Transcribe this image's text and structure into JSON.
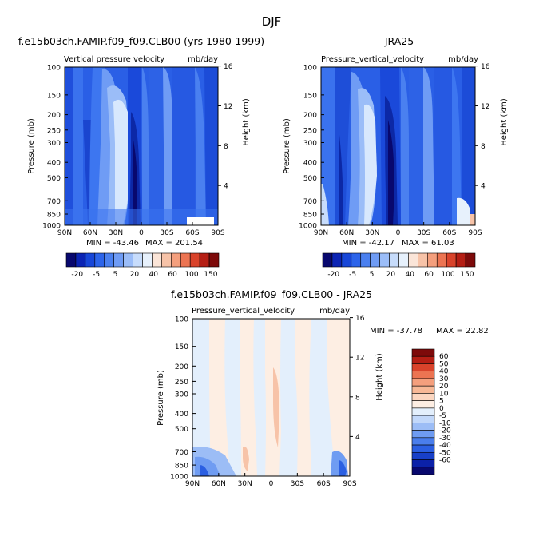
{
  "page": {
    "title": "DJF"
  },
  "chart_data": [
    {
      "type": "heatmap",
      "id": "model",
      "title": "f.e15b03ch.FAMIP.f09_f09.CLB00 (yrs 1980-1999)",
      "subtitle": "Vertical pressure velocity",
      "units": "mb/day",
      "ylabel": "Pressure (mb)",
      "y2label": "Height (km)",
      "x_ticks": [
        "90N",
        "60N",
        "30N",
        "0",
        "30S",
        "60S",
        "90S"
      ],
      "y_ticks": [
        "100",
        "150",
        "200",
        "250",
        "300",
        "400",
        "500",
        "700",
        "850",
        "1000"
      ],
      "y2_ticks": [
        "16",
        "12",
        "8",
        "4"
      ],
      "stats": {
        "min_label": "MIN = -43.46",
        "max_label": "MAX = 201.54"
      },
      "colorbar": {
        "tick_labels": [
          "-20",
          "-5",
          "5",
          "20",
          "40",
          "60",
          "100",
          "150"
        ],
        "colors": [
          "#08086e",
          "#0b24b4",
          "#1746d8",
          "#2c64ea",
          "#4a80f0",
          "#6f9cf5",
          "#9bbdf8",
          "#c7dcfb",
          "#e7f1fc",
          "#fbe5d8",
          "#f7c3a8",
          "#f49f7d",
          "#ec7452",
          "#d9432b",
          "#b51e14",
          "#7d0a0a"
        ]
      }
    },
    {
      "type": "heatmap",
      "id": "obs",
      "title": "JRA25",
      "subtitle": "Pressure_vertical_velocity",
      "units": "mb/day",
      "ylabel": "Pressure (mb)",
      "y2label": "Height (km)",
      "x_ticks": [
        "90N",
        "60N",
        "30N",
        "0",
        "30S",
        "60S",
        "90S"
      ],
      "y_ticks": [
        "100",
        "150",
        "200",
        "250",
        "300",
        "400",
        "500",
        "700",
        "850",
        "1000"
      ],
      "y2_ticks": [
        "16",
        "12",
        "8",
        "4"
      ],
      "stats": {
        "min_label": "MIN = -42.17",
        "max_label": "MAX = 61.03"
      },
      "colorbar": {
        "tick_labels": [
          "-20",
          "-5",
          "5",
          "20",
          "40",
          "60",
          "100",
          "150"
        ],
        "colors": [
          "#08086e",
          "#0b24b4",
          "#1746d8",
          "#2c64ea",
          "#4a80f0",
          "#6f9cf5",
          "#9bbdf8",
          "#c7dcfb",
          "#e7f1fc",
          "#fbe5d8",
          "#f7c3a8",
          "#f49f7d",
          "#ec7452",
          "#d9432b",
          "#b51e14",
          "#7d0a0a"
        ]
      }
    },
    {
      "type": "heatmap",
      "id": "diff",
      "title": "f.e15b03ch.FAMIP.f09_f09.CLB00 - JRA25",
      "subtitle": "Pressure_vertical_velocity",
      "units": "mb/day",
      "ylabel": "Pressure (mb)",
      "y2label": "Height (km)",
      "x_ticks": [
        "90N",
        "60N",
        "30N",
        "0",
        "30S",
        "60S",
        "90S"
      ],
      "y_ticks": [
        "100",
        "150",
        "200",
        "250",
        "300",
        "400",
        "500",
        "700",
        "850",
        "1000"
      ],
      "y2_ticks": [
        "16",
        "12",
        "8",
        "4"
      ],
      "stats": {
        "min_label": "MIN = -37.78",
        "max_label": "MAX =  22.82"
      },
      "colorbar": {
        "tick_labels": [
          "60",
          "50",
          "40",
          "30",
          "20",
          "10",
          "5",
          "0",
          "-5",
          "-10",
          "-20",
          "-30",
          "-40",
          "-50",
          "-60"
        ],
        "colors": [
          "#7d0a0a",
          "#b51e14",
          "#d9432b",
          "#ec7452",
          "#f49f7d",
          "#f7b896",
          "#fbd6c0",
          "#fdeee3",
          "#e3effc",
          "#c2d8fa",
          "#9cbdf6",
          "#6f9cf2",
          "#4a7eec",
          "#2b5fe2",
          "#1840c8",
          "#0b21a8",
          "#08086e"
        ]
      }
    }
  ]
}
